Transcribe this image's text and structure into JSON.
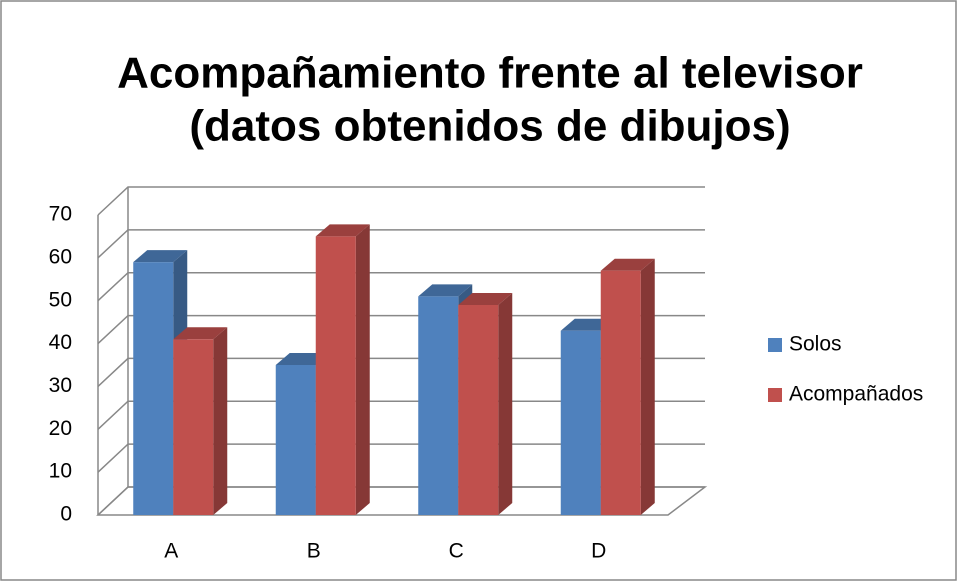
{
  "chart_data": {
    "type": "bar3d",
    "title": [
      "Acompañamiento frente al televisor",
      "(datos obtenidos de dibujos)"
    ],
    "categories": [
      "A",
      "B",
      "C",
      "D"
    ],
    "series": [
      {
        "name": "Solos",
        "color": "#4f81bd",
        "values": [
          59,
          35,
          51,
          43
        ]
      },
      {
        "name": "Acompañados",
        "color": "#c0504d",
        "values": [
          41,
          65,
          49,
          57
        ]
      }
    ],
    "ylim": [
      0,
      70
    ],
    "yticks": [
      0,
      10,
      20,
      30,
      40,
      50,
      60,
      70
    ],
    "grid": true,
    "legend": "right"
  }
}
